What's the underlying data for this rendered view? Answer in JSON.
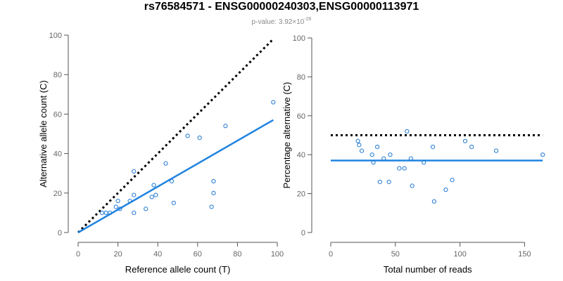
{
  "header": {
    "title": "rs76584571 - ENSG00000240303,ENSG00000113971",
    "pvalue_prefix": "p-value: 3.92×10",
    "pvalue_exponent": "-26"
  },
  "colors": {
    "points": "#1f78d1",
    "fit_line": "#1f83e0",
    "reference_line": "#000000",
    "axis": "#555555"
  },
  "chart_data": [
    {
      "type": "scatter",
      "title": "",
      "xlabel": "Reference allele count (T)",
      "ylabel": "Alternative allele count (C)",
      "xlim": [
        0,
        100
      ],
      "ylim": [
        0,
        100
      ],
      "xticks": [
        0,
        20,
        40,
        60,
        80,
        100
      ],
      "yticks": [
        0,
        20,
        40,
        60,
        80,
        100
      ],
      "grid": false,
      "points": [
        [
          12,
          10
        ],
        [
          14,
          10
        ],
        [
          16,
          10
        ],
        [
          19,
          13
        ],
        [
          20,
          16
        ],
        [
          21,
          12
        ],
        [
          26,
          16
        ],
        [
          28,
          31
        ],
        [
          28,
          19
        ],
        [
          28,
          10
        ],
        [
          34,
          12
        ],
        [
          37,
          18
        ],
        [
          38,
          24
        ],
        [
          39,
          19
        ],
        [
          44,
          35
        ],
        [
          47,
          26
        ],
        [
          48,
          15
        ],
        [
          55,
          49
        ],
        [
          61,
          48
        ],
        [
          67,
          13
        ],
        [
          68,
          20
        ],
        [
          68,
          26
        ],
        [
          74,
          54
        ],
        [
          98,
          66
        ]
      ],
      "fit_line": {
        "from": [
          0,
          0
        ],
        "to": [
          98,
          57
        ]
      },
      "reference_line": {
        "from": [
          0,
          0
        ],
        "to": [
          98,
          98
        ]
      }
    },
    {
      "type": "scatter",
      "title": "",
      "xlabel": "Total number of reads",
      "ylabel": "Percentage alternative (C)",
      "xlim": [
        0,
        165
      ],
      "ylim": [
        0,
        100
      ],
      "xticks": [
        0,
        50,
        100,
        150
      ],
      "yticks": [
        0,
        20,
        40,
        60,
        80,
        100
      ],
      "grid": false,
      "points": [
        [
          21,
          47
        ],
        [
          22,
          45
        ],
        [
          24,
          42
        ],
        [
          32,
          40
        ],
        [
          33,
          36
        ],
        [
          36,
          44
        ],
        [
          38,
          26
        ],
        [
          41,
          38
        ],
        [
          45,
          26
        ],
        [
          46,
          40
        ],
        [
          53,
          33
        ],
        [
          57,
          33
        ],
        [
          59,
          52
        ],
        [
          62,
          38
        ],
        [
          63,
          24
        ],
        [
          72,
          36
        ],
        [
          79,
          44
        ],
        [
          80,
          16
        ],
        [
          89,
          22
        ],
        [
          94,
          27
        ],
        [
          104,
          47
        ],
        [
          109,
          44
        ],
        [
          128,
          42
        ],
        [
          164,
          40
        ]
      ],
      "fit_line": {
        "from": [
          0,
          37
        ],
        "to": [
          164,
          37
        ]
      },
      "reference_line": {
        "from": [
          0,
          50
        ],
        "to": [
          164,
          50
        ]
      }
    }
  ]
}
